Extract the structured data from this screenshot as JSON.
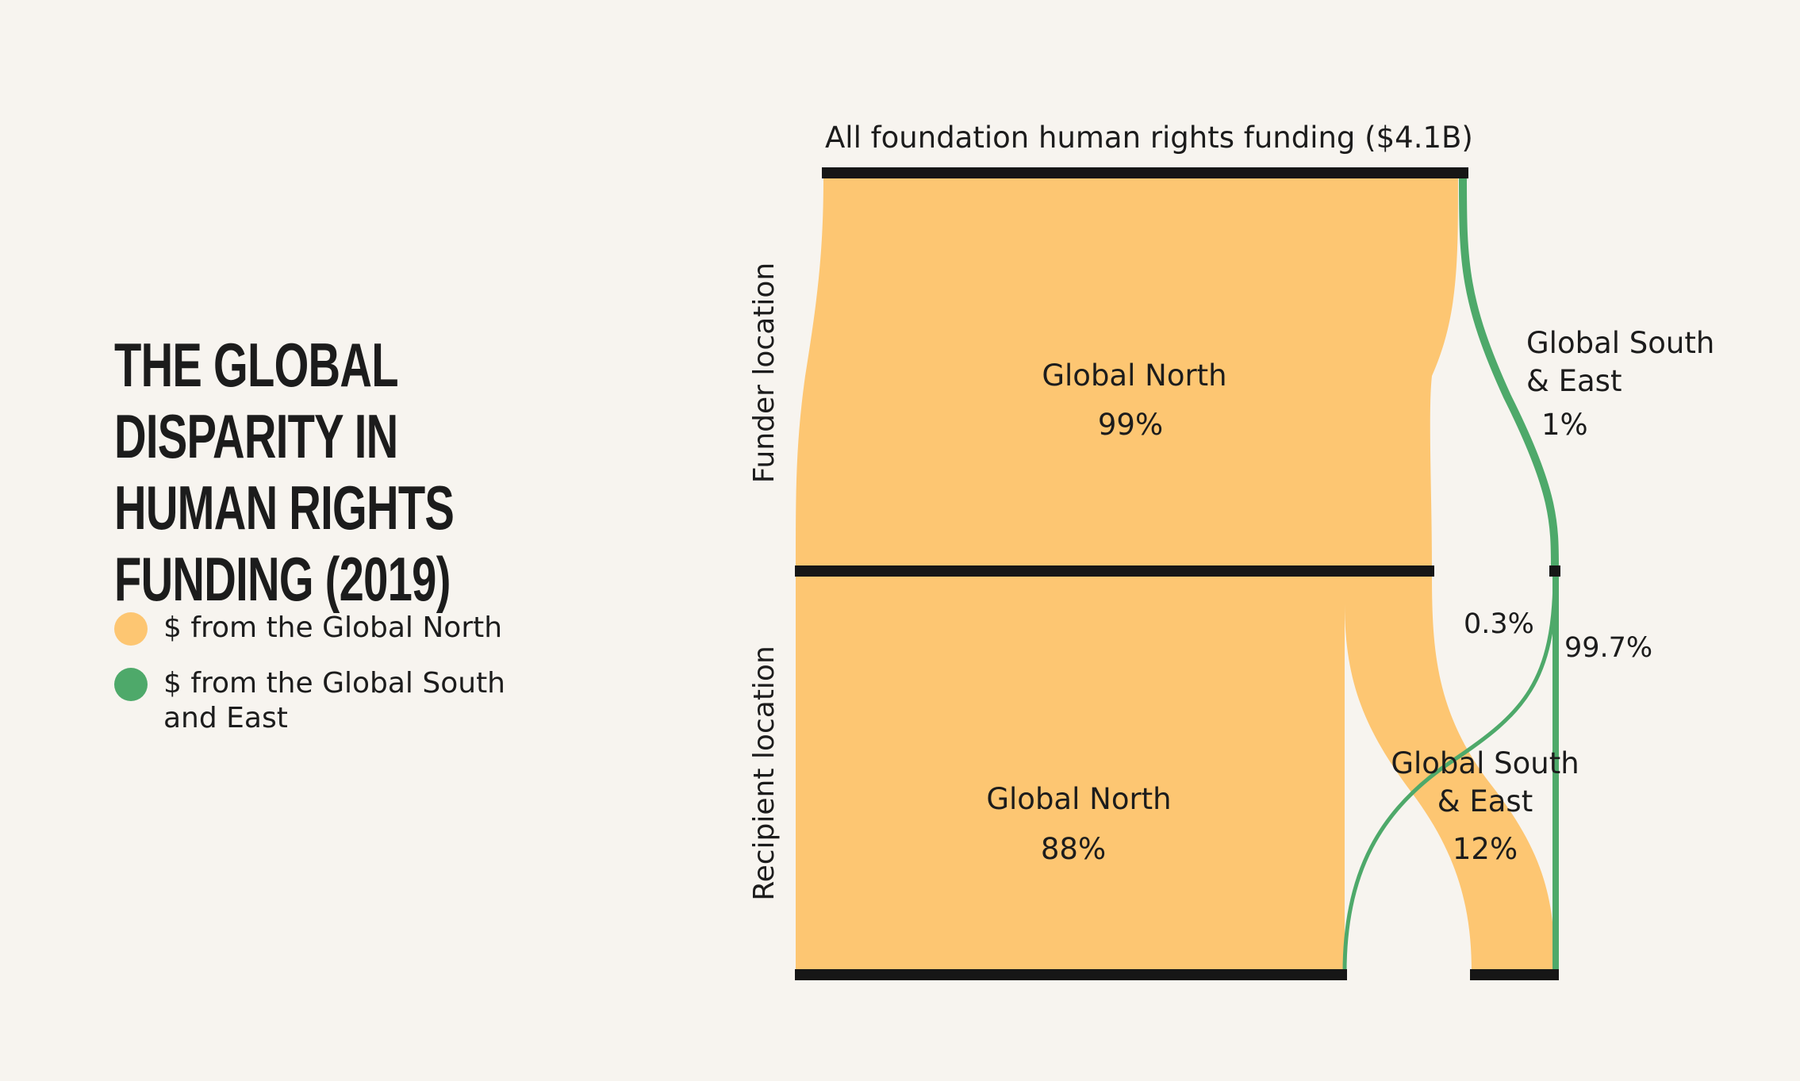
{
  "title": "The Global Disparity in Human Rights Funding (2019)",
  "colors": {
    "north": "#fdc672",
    "south": "#4ea96a",
    "bar": "#161616",
    "background": "#f7f4ef"
  },
  "legend": [
    {
      "label": "$ from the Global North",
      "color": "#fdc672"
    },
    {
      "label": "$ from the Global South and East",
      "color": "#4ea96a"
    }
  ],
  "diagram": {
    "top_label": "All foundation human rights funding ($4.1B)",
    "funder_axis_label": "Funder location",
    "recipient_axis_label": "Recipient location",
    "funder_north": {
      "name": "Global North",
      "pct": "99%"
    },
    "funder_south": {
      "name_line1": "Global South",
      "name_line2": "& East",
      "pct": "1%"
    },
    "recipient_north": {
      "name": "Global North",
      "pct": "88%"
    },
    "recipient_south": {
      "name_line1": "Global South",
      "name_line2": "& East",
      "pct": "12%"
    },
    "south_flow_to_north_pct": "0.3%",
    "south_flow_to_south_pct": "99.7%"
  }
}
